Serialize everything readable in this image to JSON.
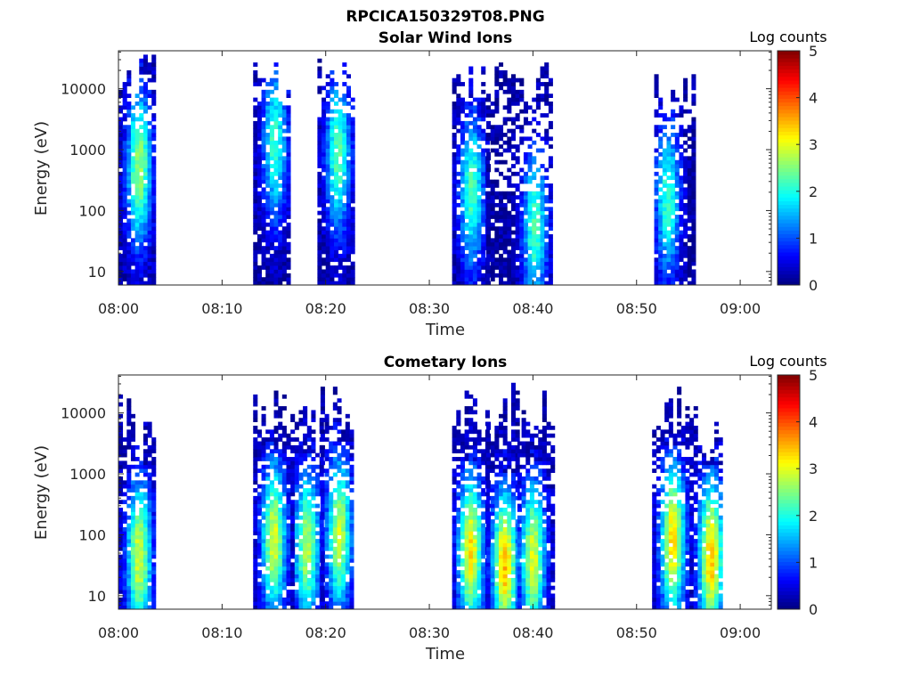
{
  "figure_title": "RPCICA150329T08.PNG",
  "chart_data": [
    {
      "type": "heatmap",
      "title": "Solar Wind Ions",
      "xlabel": "Time",
      "ylabel": "Energy (eV)",
      "y_scale": "log",
      "x_range": [
        "08:00",
        "09:03"
      ],
      "y_range": [
        6,
        42000
      ],
      "x_tick_labels": [
        "08:00",
        "08:10",
        "08:20",
        "08:30",
        "08:40",
        "08:50",
        "09:00"
      ],
      "y_tick_labels": [
        "10",
        "100",
        "1000",
        "10000"
      ],
      "colorbar": {
        "label": "Log counts",
        "range": [
          0,
          5
        ],
        "ticks": [
          "0",
          "1",
          "2",
          "3",
          "4",
          "5"
        ],
        "colormap": "jet"
      },
      "bursts": [
        {
          "start": "08:00",
          "end": "08:03.4",
          "peak_time": "08:02",
          "emax_eV": 38000,
          "emin_eV": 6,
          "peak_energy_eV": 500,
          "peak_log_counts": 2.5,
          "sparsity": 0.35
        },
        {
          "start": "08:13",
          "end": "08:16.5",
          "peak_time": "08:15.1",
          "emax_eV": 35000,
          "emin_eV": 6,
          "peak_energy_eV": 1200,
          "peak_log_counts": 2.0,
          "sparsity": 0.4
        },
        {
          "start": "08:19.2",
          "end": "08:22.5",
          "peak_time": "08:21.2",
          "emax_eV": 38000,
          "emin_eV": 6,
          "peak_energy_eV": 800,
          "peak_log_counts": 2.2,
          "sparsity": 0.4
        },
        {
          "start": "08:32.2",
          "end": "08:35.5",
          "peak_time": "08:34.1",
          "emax_eV": 35000,
          "emin_eV": 6,
          "peak_energy_eV": 200,
          "peak_log_counts": 2.1,
          "sparsity": 0.35
        },
        {
          "start": "08:35.5",
          "end": "08:41.8",
          "peak_time": "08:40.2",
          "emax_eV": 35000,
          "emin_eV": 6,
          "peak_energy_eV": 50,
          "peak_log_counts": 2.1,
          "sparsity": 0.45
        },
        {
          "start": "08:51.7",
          "end": "08:55.5",
          "peak_time": "08:53",
          "emax_eV": 22000,
          "emin_eV": 6,
          "peak_energy_eV": 150,
          "peak_log_counts": 2.0,
          "sparsity": 0.4
        }
      ]
    },
    {
      "type": "heatmap",
      "title": "Cometary Ions",
      "xlabel": "Time",
      "ylabel": "Energy (eV)",
      "y_scale": "log",
      "x_range": [
        "08:00",
        "09:03"
      ],
      "y_range": [
        6,
        42000
      ],
      "x_tick_labels": [
        "08:00",
        "08:10",
        "08:20",
        "08:30",
        "08:40",
        "08:50",
        "09:00"
      ],
      "y_tick_labels": [
        "10",
        "100",
        "1000",
        "10000"
      ],
      "colorbar": {
        "label": "Log counts",
        "range": [
          0,
          5
        ],
        "ticks": [
          "0",
          "1",
          "2",
          "3",
          "4",
          "5"
        ],
        "colormap": "jet"
      },
      "bursts": [
        {
          "start": "08:00",
          "end": "08:03.4",
          "peak_time": "08:02",
          "emax_eV": 20000,
          "emin_eV": 6,
          "peak_energy_eV": 40,
          "peak_log_counts": 2.8,
          "sparsity": 0.3
        },
        {
          "start": "08:13",
          "end": "08:17",
          "peak_time": "08:15",
          "emax_eV": 30000,
          "emin_eV": 6,
          "peak_energy_eV": 80,
          "peak_log_counts": 2.8,
          "sparsity": 0.35
        },
        {
          "start": "08:17",
          "end": "08:19.5",
          "peak_time": "08:18.2",
          "emax_eV": 15000,
          "emin_eV": 6,
          "peak_energy_eV": 60,
          "peak_log_counts": 2.6,
          "sparsity": 0.35
        },
        {
          "start": "08:19.5",
          "end": "08:22.5",
          "peak_time": "08:21.3",
          "emax_eV": 30000,
          "emin_eV": 6,
          "peak_energy_eV": 100,
          "peak_log_counts": 2.7,
          "sparsity": 0.35
        },
        {
          "start": "08:32.2",
          "end": "08:35.5",
          "peak_time": "08:34",
          "emax_eV": 25000,
          "emin_eV": 6,
          "peak_energy_eV": 50,
          "peak_log_counts": 3.1,
          "sparsity": 0.3
        },
        {
          "start": "08:35.5",
          "end": "08:38.5",
          "peak_time": "08:37.3",
          "emax_eV": 30000,
          "emin_eV": 6,
          "peak_energy_eV": 30,
          "peak_log_counts": 3.3,
          "sparsity": 0.3
        },
        {
          "start": "08:38.5",
          "end": "08:41.8",
          "peak_time": "08:40",
          "emax_eV": 25000,
          "emin_eV": 6,
          "peak_energy_eV": 40,
          "peak_log_counts": 2.8,
          "sparsity": 0.35
        },
        {
          "start": "08:51.5",
          "end": "08:55.5",
          "peak_time": "08:53.5",
          "emax_eV": 30000,
          "emin_eV": 6,
          "peak_energy_eV": 80,
          "peak_log_counts": 3.1,
          "sparsity": 0.35
        },
        {
          "start": "08:55.5",
          "end": "08:58.2",
          "peak_time": "08:57.2",
          "emax_eV": 15000,
          "emin_eV": 6,
          "peak_energy_eV": 40,
          "peak_log_counts": 3.3,
          "sparsity": 0.35
        }
      ]
    }
  ]
}
